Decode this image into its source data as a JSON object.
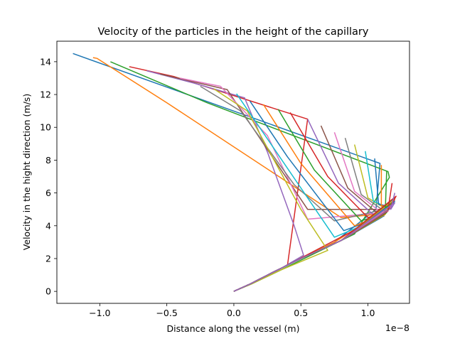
{
  "chart_data": {
    "type": "line",
    "title": "Velocity of the particles in the height of the capillary",
    "xlabel": "Distance along the vessel (m)",
    "ylabel": "Velocity in the hight direction (m/s)",
    "x_offset_label": "1e−8",
    "xlim": [
      -1.32,
      1.31
    ],
    "ylim": [
      -0.73,
      15.25
    ],
    "x_ticks": [
      -1.0,
      -0.5,
      0.0,
      0.5,
      1.0
    ],
    "x_tick_labels": [
      "−1.0",
      "−0.5",
      "0.0",
      "0.5",
      "1.0"
    ],
    "y_ticks": [
      0,
      2,
      4,
      6,
      8,
      10,
      12,
      14
    ],
    "y_tick_labels": [
      "0",
      "2",
      "4",
      "6",
      "8",
      "10",
      "12",
      "14"
    ],
    "grid": false,
    "legend": "none",
    "series": [
      {
        "color": "#1f77b4",
        "points": [
          [
            -1.2,
            14.5
          ],
          [
            1.09,
            7.8
          ],
          [
            1.06,
            5.0
          ],
          [
            0.75,
            3.0
          ],
          [
            0.5,
            2.0
          ],
          [
            0.3,
            1.2
          ],
          [
            0.12,
            0.45
          ],
          [
            0,
            0
          ]
        ]
      },
      {
        "color": "#ff7f0e",
        "points": [
          [
            -1.05,
            14.25
          ],
          [
            -1.02,
            14.2
          ],
          [
            -0.5,
            11.5
          ],
          [
            0.8,
            4.5
          ],
          [
            1.08,
            4.7
          ],
          [
            0.75,
            3.0
          ],
          [
            0.5,
            2.0
          ],
          [
            0.3,
            1.2
          ],
          [
            0.12,
            0.45
          ],
          [
            0,
            0
          ]
        ]
      },
      {
        "color": "#2ca02c",
        "points": [
          [
            -0.92,
            14.0
          ],
          [
            -0.2,
            11.5
          ],
          [
            1.15,
            7.3
          ],
          [
            1.16,
            6.95
          ],
          [
            0.9,
            3.5
          ],
          [
            0.6,
            2.3
          ],
          [
            0.35,
            1.3
          ],
          [
            0.13,
            0.45
          ],
          [
            0,
            0
          ]
        ]
      },
      {
        "color": "#d62728",
        "points": [
          [
            -0.78,
            13.7
          ],
          [
            -0.45,
            13.1
          ],
          [
            0.55,
            10.5
          ],
          [
            0.4,
            1.6
          ],
          [
            1.1,
            4.6
          ],
          [
            0.8,
            3.1
          ],
          [
            0.5,
            2.0
          ],
          [
            0.3,
            1.2
          ],
          [
            0.12,
            0.45
          ],
          [
            0,
            0
          ]
        ]
      },
      {
        "color": "#9467bd",
        "points": [
          [
            -0.65,
            13.45
          ],
          [
            -0.3,
            12.7
          ],
          [
            0.08,
            11.8
          ],
          [
            0.25,
            8.5
          ],
          [
            0.45,
            4.0
          ],
          [
            0.52,
            2.2
          ],
          [
            0.33,
            1.3
          ],
          [
            0.12,
            0.45
          ],
          [
            0,
            0
          ]
        ]
      },
      {
        "color": "#8c564b",
        "points": [
          [
            -0.55,
            13.25
          ],
          [
            -0.05,
            12.3
          ],
          [
            0.55,
            5.0
          ],
          [
            1.13,
            5.0
          ],
          [
            0.8,
            3.1
          ],
          [
            0.5,
            2.0
          ],
          [
            0.3,
            1.2
          ],
          [
            0.12,
            0.45
          ],
          [
            0,
            0
          ]
        ]
      },
      {
        "color": "#e377c2",
        "points": [
          [
            -0.4,
            13.0
          ],
          [
            -0.1,
            12.5
          ],
          [
            0.25,
            9.5
          ],
          [
            0.55,
            4.4
          ],
          [
            1.12,
            4.8
          ],
          [
            0.8,
            3.1
          ],
          [
            0.5,
            2.0
          ],
          [
            0.3,
            1.2
          ],
          [
            0.12,
            0.45
          ],
          [
            0,
            0
          ]
        ]
      },
      {
        "color": "#7f7f7f",
        "points": [
          [
            -0.25,
            12.5
          ],
          [
            0.05,
            11.0
          ],
          [
            0.45,
            6.5
          ],
          [
            0.75,
            4.3
          ],
          [
            1.12,
            5.0
          ],
          [
            0.8,
            3.1
          ],
          [
            0.5,
            2.0
          ],
          [
            0.3,
            1.2
          ],
          [
            0.12,
            0.45
          ],
          [
            0,
            0
          ]
        ]
      },
      {
        "color": "#bcbd22",
        "points": [
          [
            -0.15,
            12.35
          ],
          [
            0.1,
            11.0
          ],
          [
            0.5,
            5.0
          ],
          [
            0.7,
            2.5
          ],
          [
            0.35,
            1.3
          ],
          [
            0.13,
            0.45
          ],
          [
            0,
            0
          ]
        ]
      },
      {
        "color": "#17becf",
        "points": [
          [
            0.02,
            12.05
          ],
          [
            0.3,
            8.7
          ],
          [
            0.75,
            3.3
          ],
          [
            1.1,
            4.5
          ],
          [
            0.8,
            3.1
          ],
          [
            0.5,
            2.0
          ],
          [
            0.3,
            1.2
          ],
          [
            0.12,
            0.45
          ],
          [
            0,
            0
          ]
        ]
      },
      {
        "color": "#1f77b4",
        "points": [
          [
            0.12,
            11.6
          ],
          [
            0.4,
            8.2
          ],
          [
            0.82,
            3.7
          ],
          [
            1.12,
            4.6
          ],
          [
            0.8,
            3.1
          ],
          [
            0.5,
            2.0
          ],
          [
            0.3,
            1.2
          ],
          [
            0.12,
            0.45
          ],
          [
            0,
            0
          ]
        ]
      },
      {
        "color": "#ff7f0e",
        "points": [
          [
            0.22,
            11.4
          ],
          [
            0.5,
            7.8
          ],
          [
            0.9,
            4.0
          ],
          [
            1.13,
            4.7
          ],
          [
            0.8,
            3.1
          ],
          [
            0.5,
            2.0
          ],
          [
            0.3,
            1.2
          ],
          [
            0.12,
            0.45
          ],
          [
            0,
            0
          ]
        ]
      },
      {
        "color": "#2ca02c",
        "points": [
          [
            0.33,
            11.1
          ],
          [
            0.6,
            7.4
          ],
          [
            0.95,
            4.3
          ],
          [
            1.14,
            4.8
          ],
          [
            0.8,
            3.1
          ],
          [
            0.5,
            2.0
          ],
          [
            0.3,
            1.2
          ],
          [
            0.12,
            0.45
          ],
          [
            0,
            0
          ]
        ]
      },
      {
        "color": "#d62728",
        "points": [
          [
            0.42,
            10.9
          ],
          [
            0.7,
            7.0
          ],
          [
            1.0,
            4.5
          ],
          [
            1.15,
            4.9
          ],
          [
            0.8,
            3.1
          ],
          [
            0.5,
            2.0
          ],
          [
            0.3,
            1.2
          ],
          [
            0.12,
            0.45
          ],
          [
            0,
            0
          ]
        ]
      },
      {
        "color": "#9467bd",
        "points": [
          [
            0.55,
            10.5
          ],
          [
            0.78,
            6.6
          ],
          [
            1.05,
            4.6
          ],
          [
            1.16,
            5.0
          ],
          [
            0.8,
            3.1
          ],
          [
            0.5,
            2.0
          ],
          [
            0.3,
            1.2
          ],
          [
            0.12,
            0.45
          ],
          [
            0,
            0
          ]
        ]
      },
      {
        "color": "#8c564b",
        "points": [
          [
            0.65,
            10.1
          ],
          [
            0.85,
            6.3
          ],
          [
            1.08,
            4.7
          ],
          [
            1.17,
            5.1
          ],
          [
            0.8,
            3.1
          ],
          [
            0.5,
            2.0
          ],
          [
            0.3,
            1.2
          ],
          [
            0.12,
            0.45
          ],
          [
            0,
            0
          ]
        ]
      },
      {
        "color": "#e377c2",
        "points": [
          [
            0.75,
            9.7
          ],
          [
            0.9,
            6.1
          ],
          [
            1.1,
            4.8
          ],
          [
            1.18,
            5.2
          ],
          [
            0.8,
            3.1
          ],
          [
            0.5,
            2.0
          ],
          [
            0.3,
            1.2
          ],
          [
            0.12,
            0.45
          ],
          [
            0,
            0
          ]
        ]
      },
      {
        "color": "#7f7f7f",
        "points": [
          [
            0.83,
            9.35
          ],
          [
            0.95,
            5.9
          ],
          [
            1.12,
            4.9
          ],
          [
            1.18,
            5.3
          ],
          [
            0.8,
            3.1
          ],
          [
            0.5,
            2.0
          ],
          [
            0.3,
            1.2
          ],
          [
            0.12,
            0.45
          ],
          [
            0,
            0
          ]
        ]
      },
      {
        "color": "#bcbd22",
        "points": [
          [
            0.9,
            8.95
          ],
          [
            1.0,
            5.7
          ],
          [
            1.14,
            5.0
          ],
          [
            1.19,
            5.4
          ],
          [
            0.8,
            3.1
          ],
          [
            0.5,
            2.0
          ],
          [
            0.3,
            1.2
          ],
          [
            0.12,
            0.45
          ],
          [
            0,
            0
          ]
        ]
      },
      {
        "color": "#17becf",
        "points": [
          [
            0.98,
            8.55
          ],
          [
            1.04,
            5.5
          ],
          [
            1.15,
            5.1
          ],
          [
            1.19,
            5.45
          ],
          [
            0.8,
            3.1
          ],
          [
            0.5,
            2.0
          ],
          [
            0.3,
            1.2
          ],
          [
            0.12,
            0.45
          ],
          [
            0,
            0
          ]
        ]
      },
      {
        "color": "#1f77b4",
        "points": [
          [
            1.05,
            8.1
          ],
          [
            1.08,
            5.3
          ],
          [
            1.16,
            5.2
          ],
          [
            1.2,
            5.5
          ],
          [
            0.8,
            3.1
          ],
          [
            0.5,
            2.0
          ],
          [
            0.3,
            1.2
          ],
          [
            0.12,
            0.45
          ],
          [
            0,
            0
          ]
        ]
      },
      {
        "color": "#ff7f0e",
        "points": [
          [
            1.1,
            7.7
          ],
          [
            1.1,
            5.2
          ],
          [
            1.17,
            5.3
          ],
          [
            1.2,
            5.6
          ],
          [
            0.8,
            3.1
          ],
          [
            0.5,
            2.0
          ],
          [
            0.3,
            1.2
          ],
          [
            0.12,
            0.45
          ],
          [
            0,
            0
          ]
        ]
      },
      {
        "color": "#2ca02c",
        "points": [
          [
            1.14,
            7.35
          ],
          [
            1.13,
            5.1
          ],
          [
            1.18,
            5.4
          ],
          [
            1.2,
            5.7
          ],
          [
            0.8,
            3.1
          ],
          [
            0.5,
            2.0
          ],
          [
            0.3,
            1.2
          ],
          [
            0.12,
            0.45
          ],
          [
            0,
            0
          ]
        ]
      },
      {
        "color": "#d62728",
        "points": [
          [
            1.18,
            6.6
          ],
          [
            1.15,
            5.0
          ],
          [
            1.19,
            5.5
          ],
          [
            1.21,
            5.8
          ],
          [
            0.8,
            3.1
          ],
          [
            0.5,
            2.0
          ],
          [
            0.3,
            1.2
          ],
          [
            0.12,
            0.45
          ],
          [
            0,
            0
          ]
        ]
      },
      {
        "color": "#9467bd",
        "points": [
          [
            1.2,
            6.0
          ],
          [
            1.17,
            5.0
          ],
          [
            1.2,
            5.4
          ],
          [
            0.8,
            3.1
          ],
          [
            0.5,
            2.0
          ],
          [
            0.3,
            1.2
          ],
          [
            0.12,
            0.45
          ],
          [
            0,
            0
          ]
        ]
      }
    ]
  }
}
